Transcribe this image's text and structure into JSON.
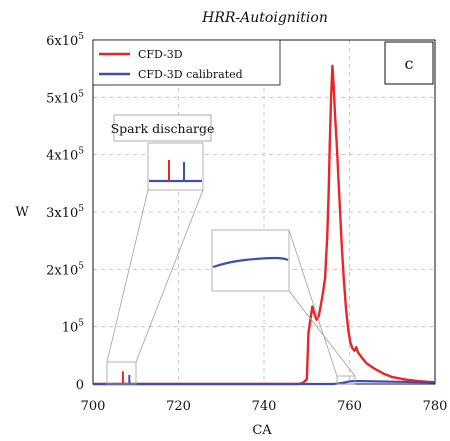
{
  "chart_data": {
    "type": "line",
    "title": "HRR-Autoignition",
    "xlabel": "CA",
    "ylabel": "W",
    "xlim": [
      700,
      780
    ],
    "ylim": [
      0,
      600000
    ],
    "grid": true,
    "legend_position": "top-left",
    "x_ticks": [
      "700",
      "720",
      "740",
      "760",
      "780"
    ],
    "y_ticks": [
      {
        "mant": "0",
        "exp": ""
      },
      {
        "mant": "10",
        "exp": "5"
      },
      {
        "mant": "2x10",
        "exp": "5"
      },
      {
        "mant": "3x10",
        "exp": "5"
      },
      {
        "mant": "4x10",
        "exp": "5"
      },
      {
        "mant": "5x10",
        "exp": "5"
      },
      {
        "mant": "6x10",
        "exp": "5"
      }
    ],
    "panel_label": "c",
    "series": [
      {
        "name": "CFD-3D",
        "color": "#e8262a",
        "points": [
          [
            700,
            0
          ],
          [
            748,
            0
          ],
          [
            749,
            1500
          ],
          [
            750,
            8000
          ],
          [
            750.4,
            90000
          ],
          [
            750.8,
            110000
          ],
          [
            751.3,
            135000
          ],
          [
            751.8,
            122000
          ],
          [
            752.3,
            112000
          ],
          [
            752.8,
            118000
          ],
          [
            753.3,
            138000
          ],
          [
            753.8,
            160000
          ],
          [
            754.3,
            185000
          ],
          [
            754.8,
            260000
          ],
          [
            755.1,
            330000
          ],
          [
            755.4,
            420000
          ],
          [
            755.7,
            500000
          ],
          [
            756,
            555000
          ],
          [
            756.3,
            520000
          ],
          [
            756.6,
            470000
          ],
          [
            757,
            420000
          ],
          [
            757.4,
            360000
          ],
          [
            757.8,
            300000
          ],
          [
            758.2,
            240000
          ],
          [
            758.7,
            180000
          ],
          [
            759.2,
            130000
          ],
          [
            759.7,
            95000
          ],
          [
            760.2,
            72000
          ],
          [
            760.7,
            62000
          ],
          [
            761.2,
            58000
          ],
          [
            761.6,
            64000
          ],
          [
            762,
            55000
          ],
          [
            763,
            45000
          ],
          [
            764,
            36000
          ],
          [
            766,
            26000
          ],
          [
            768,
            18000
          ],
          [
            770,
            12000
          ],
          [
            773,
            8000
          ],
          [
            776,
            5000
          ],
          [
            780,
            3000
          ]
        ]
      },
      {
        "name": "CFD-3D calibrated",
        "color": "#3f4fb0",
        "points": [
          [
            700,
            0
          ],
          [
            756,
            0
          ],
          [
            757,
            500
          ],
          [
            758,
            1500
          ],
          [
            759,
            3000
          ],
          [
            760,
            4500
          ],
          [
            761,
            5000
          ],
          [
            763,
            5000
          ],
          [
            770,
            4000
          ],
          [
            775,
            3500
          ],
          [
            780,
            3000
          ]
        ]
      }
    ],
    "spark_marks": [
      {
        "series": "CFD-3D",
        "x": 707,
        "value": 22000
      },
      {
        "series": "CFD-3D calibrated",
        "x": 708.5,
        "value": 16000
      }
    ],
    "annotations": {
      "spark_discharge": "Spark discharge"
    }
  }
}
